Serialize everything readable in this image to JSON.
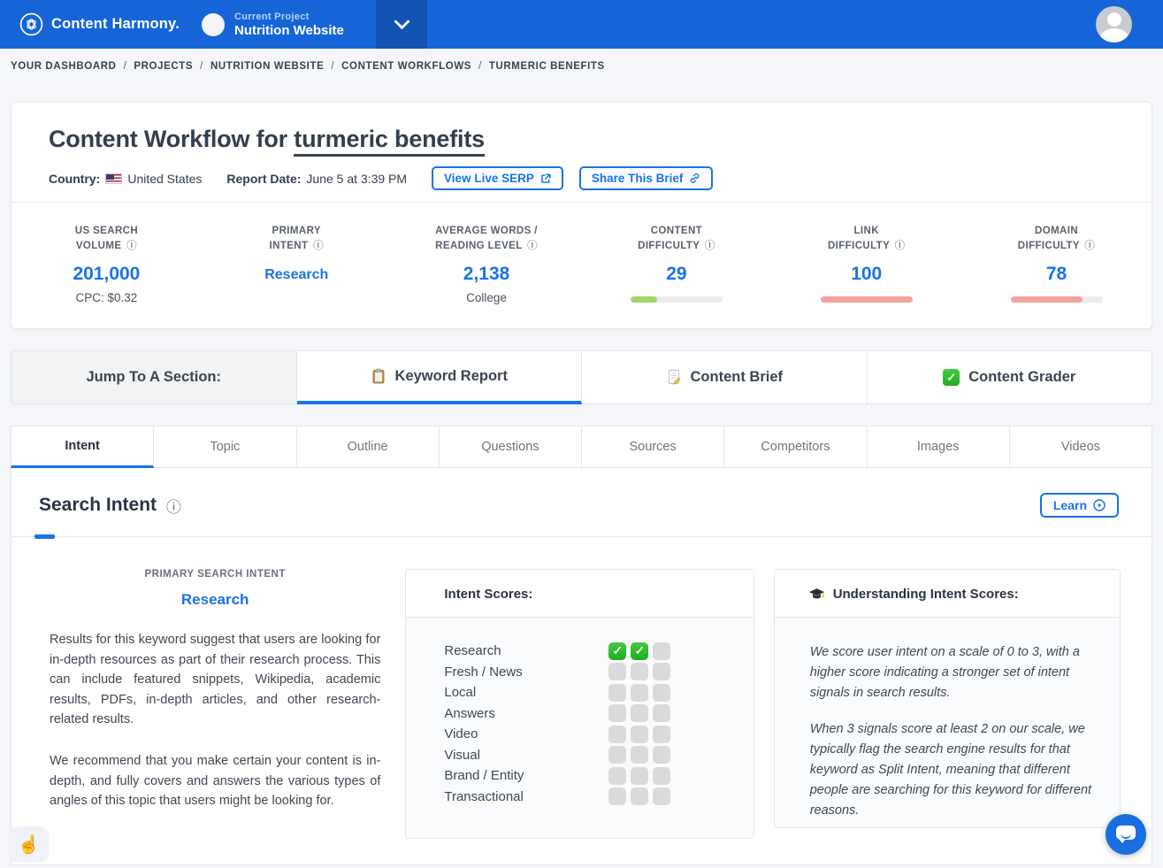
{
  "colors": {
    "accent": "#1a73e8",
    "navbar_blue": "#1565d8",
    "green_bar": "#a2d56a",
    "red_bar": "#f2a39d",
    "check_green": "#2fbe2f"
  },
  "icons": {
    "info": "ⓘ",
    "check": "✓",
    "pointer": "☝"
  },
  "navbar": {
    "brand": "Content Harmony.",
    "current_project_label": "Current Project",
    "current_project_name": "Nutrition Website"
  },
  "breadcrumb": {
    "separator": "/",
    "items": [
      "YOUR DASHBOARD",
      "PROJECTS",
      "NUTRITION WEBSITE",
      "CONTENT WORKFLOWS",
      "TURMERIC BENEFITS"
    ]
  },
  "header": {
    "title_prefix": "Content Workflow for ",
    "title_keyword": "turmeric benefits",
    "country_label": "Country:",
    "country_value": "United States",
    "report_date_label": "Report Date:",
    "report_date_value": "June 5 at 3:39 PM",
    "view_serp_button": "View Live SERP",
    "share_brief_button": "Share This Brief"
  },
  "stats": {
    "items": [
      {
        "label_top": "US SEARCH",
        "label_bottom": "VOLUME",
        "value": "201,000",
        "sub": "CPC: $0.32"
      },
      {
        "label_top": "PRIMARY",
        "label_bottom": "INTENT",
        "value": "Research"
      },
      {
        "label_top": "AVERAGE WORDS /",
        "label_bottom": "READING LEVEL",
        "value": "2,138",
        "sub": "College"
      },
      {
        "label_top": "CONTENT",
        "label_bottom": "DIFFICULTY",
        "value": "29",
        "bar_pct": 29,
        "bar_color": "green"
      },
      {
        "label_top": "LINK",
        "label_bottom": "DIFFICULTY",
        "value": "100",
        "bar_pct": 100,
        "bar_color": "red"
      },
      {
        "label_top": "DOMAIN",
        "label_bottom": "DIFFICULTY",
        "value": "78",
        "bar_pct": 78,
        "bar_color": "red"
      }
    ]
  },
  "jump": {
    "heading": "Jump To A Section:",
    "sections": [
      {
        "label": "Keyword Report",
        "active": true
      },
      {
        "label": "Content Brief",
        "active": false
      },
      {
        "label": "Content Grader",
        "active": false
      }
    ]
  },
  "tabs": {
    "items": [
      {
        "label": "Intent",
        "active": true
      },
      {
        "label": "Topic",
        "active": false
      },
      {
        "label": "Outline",
        "active": false
      },
      {
        "label": "Questions",
        "active": false
      },
      {
        "label": "Sources",
        "active": false
      },
      {
        "label": "Competitors",
        "active": false
      },
      {
        "label": "Images",
        "active": false
      },
      {
        "label": "Videos",
        "active": false
      }
    ]
  },
  "search_intent": {
    "heading": "Search Intent",
    "learn_label": "Learn",
    "primary_intent_label": "PRIMARY SEARCH INTENT",
    "primary_intent_value": "Research",
    "description_paragraphs": [
      "Results for this keyword suggest that users are looking for in-depth resources as part of their research process. This can include featured snippets, Wikipedia, academic results, PDFs, in-depth articles, and other research-related results.",
      "We recommend that you make certain your content is in-depth, and fully covers and answers the various types of angles of this topic that users might be looking for."
    ]
  },
  "intent_scores": {
    "title": "Intent Scores:",
    "rows": [
      {
        "label": "Research",
        "scores": [
          1,
          1,
          0
        ]
      },
      {
        "label": "Fresh / News",
        "scores": [
          0,
          0,
          0
        ]
      },
      {
        "label": "Local",
        "scores": [
          0,
          0,
          0
        ]
      },
      {
        "label": "Answers",
        "scores": [
          0,
          0,
          0
        ]
      },
      {
        "label": "Video",
        "scores": [
          0,
          0,
          0
        ]
      },
      {
        "label": "Visual",
        "scores": [
          0,
          0,
          0
        ]
      },
      {
        "label": "Brand / Entity",
        "scores": [
          0,
          0,
          0
        ]
      },
      {
        "label": "Transactional",
        "scores": [
          0,
          0,
          0
        ]
      }
    ]
  },
  "understanding": {
    "title": "Understanding Intent Scores:",
    "paragraphs": [
      "We score user intent on a scale of 0 to 3, with a higher score indicating a stronger set of intent signals in search results.",
      "When 3 signals score at least 2 on our scale, we typically flag the search engine results for that keyword as Split Intent, meaning that different people are searching for this keyword for different reasons."
    ]
  }
}
